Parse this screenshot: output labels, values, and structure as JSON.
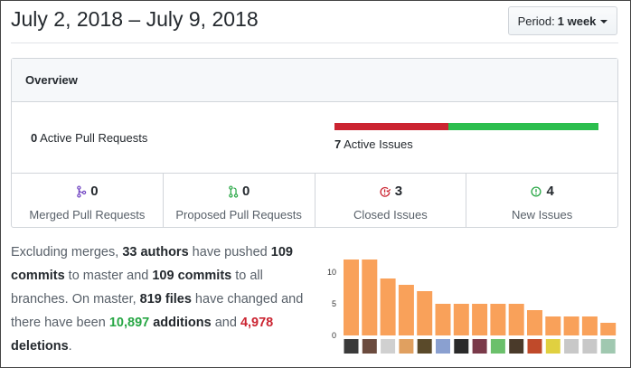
{
  "header": {
    "title": "July 2, 2018 – July 9, 2018",
    "period_label": "Period:",
    "period_value": "1 week"
  },
  "overview": {
    "heading": "Overview",
    "active_pr_count": "0",
    "active_pr_label": "Active Pull Requests",
    "active_issues_count": "7",
    "active_issues_label": "Active Issues",
    "issues_bar": {
      "closed_fraction": 0.43,
      "new_fraction": 0.57,
      "closed_color": "#cb2431",
      "new_color": "#2cbe4e"
    },
    "stats": [
      {
        "icon": "merged-pr-icon",
        "color": "#6f42c1",
        "value": "0",
        "label": "Merged Pull Requests"
      },
      {
        "icon": "proposed-pr-icon",
        "color": "#28a745",
        "value": "0",
        "label": "Proposed Pull Requests"
      },
      {
        "icon": "closed-issue-icon",
        "color": "#cb2431",
        "value": "3",
        "label": "Closed Issues"
      },
      {
        "icon": "new-issue-icon",
        "color": "#28a745",
        "value": "4",
        "label": "New Issues"
      }
    ]
  },
  "summary": {
    "t1": "Excluding merges, ",
    "authors": "33 authors",
    "t2": " have pushed ",
    "commits_master": "109 commits",
    "t3": " to master and ",
    "commits_all": "109 commits",
    "t4": " to all branches. On master, ",
    "files": "819 files",
    "t5": " have changed and there have been ",
    "additions": "10,897",
    "t6": " ",
    "additions_word": "additions",
    "t7": " and ",
    "deletions": "4,978",
    "t8": " ",
    "deletions_word": "deletions",
    "t9": "."
  },
  "chart_data": {
    "type": "bar",
    "values": [
      12,
      12,
      9,
      8,
      7,
      5,
      5,
      5,
      5,
      5,
      4,
      3,
      3,
      3,
      2
    ],
    "yticks": [
      "0",
      "5",
      "10"
    ],
    "ylim": [
      0,
      13
    ],
    "bar_color": "#f9a15a",
    "avatar_colors": [
      "#3a3a3a",
      "#6b4b3e",
      "#d0d0d0",
      "#e0a060",
      "#5a4a2a",
      "#8aa0d0",
      "#2a2a2a",
      "#7a3a4a",
      "#6bc06b",
      "#4a3a2a",
      "#c04a2a",
      "#e0d040",
      "#c8c8c8",
      "#c8c8c8",
      "#a0c8b0"
    ]
  }
}
